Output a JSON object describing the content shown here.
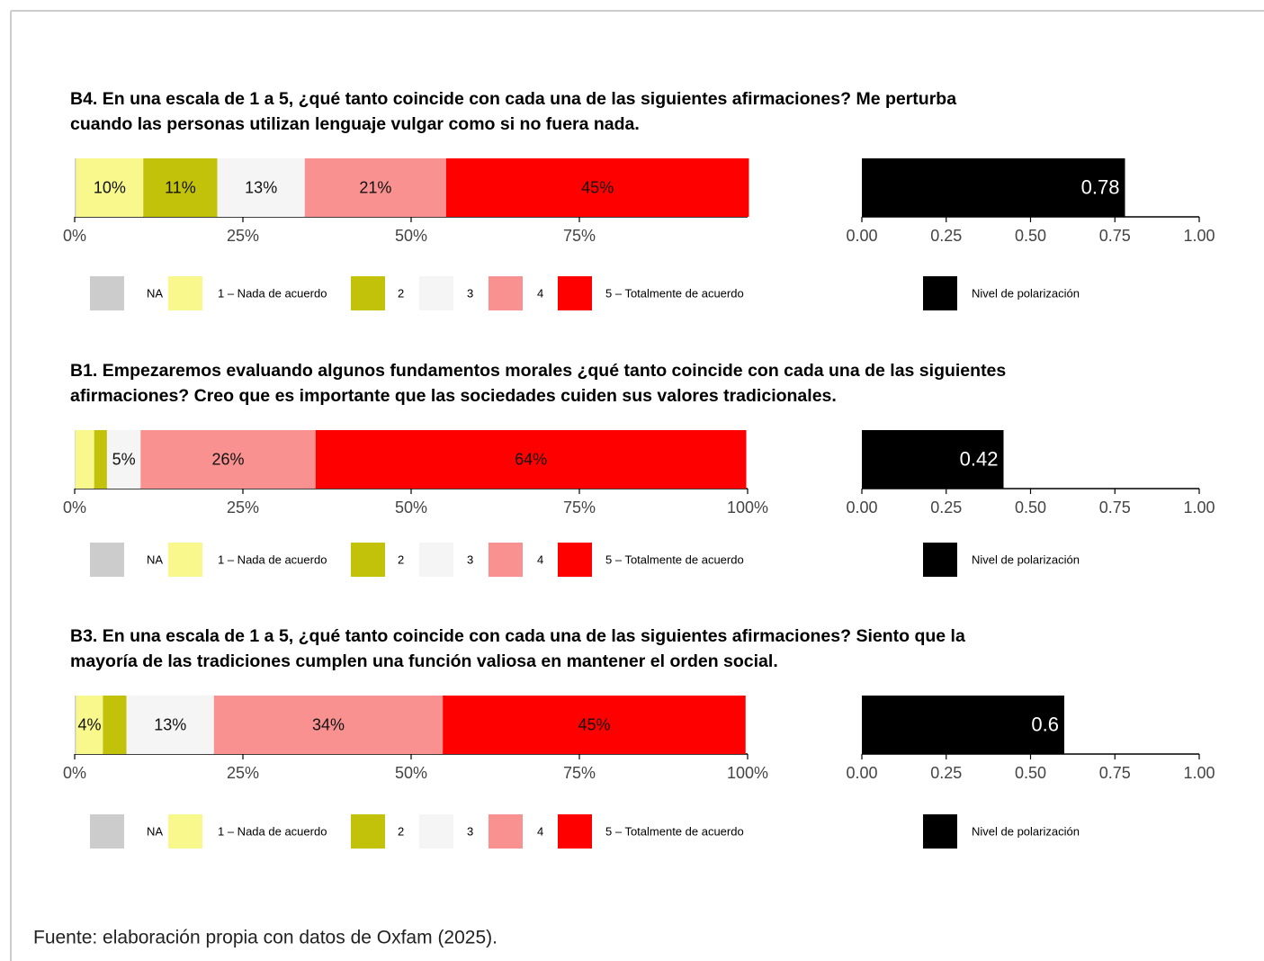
{
  "chart_data": [
    {
      "type": "bar",
      "stacked": true,
      "orientation": "horizontal",
      "title": [
        "B4. En una escala de 1 a 5, ¿qué tanto coincide con cada una de las siguientes afirmaciones? Me perturba",
        "cuando las personas utilizan lenguaje vulgar como si no fuera nada."
      ],
      "series": [
        {
          "name": "NA",
          "color": "#cccccc",
          "values": [
            0.2
          ]
        },
        {
          "name": "1 – Nada de acuerdo",
          "color": "#f8f88c",
          "values": [
            10
          ],
          "value_labels": [
            "10%"
          ]
        },
        {
          "name": "2",
          "color": "#c2c20a",
          "values": [
            11
          ],
          "value_labels": [
            "11%"
          ]
        },
        {
          "name": "3",
          "color": "#f5f5f5",
          "values": [
            13
          ],
          "value_labels": [
            "13%"
          ]
        },
        {
          "name": "4",
          "color": "#f99191",
          "values": [
            21
          ],
          "value_labels": [
            "21%"
          ]
        },
        {
          "name": "5 – Totalmente de acuerdo",
          "color": "#ff0000",
          "values": [
            45
          ],
          "value_labels": [
            "45%"
          ]
        }
      ],
      "xlim": [
        0,
        100
      ],
      "xticks": [
        {
          "value": 0,
          "label": "0%"
        },
        {
          "value": 25,
          "label": "25%"
        },
        {
          "value": 50,
          "label": "50%"
        },
        {
          "value": 75,
          "label": "75%"
        }
      ]
    },
    {
      "type": "bar",
      "orientation": "horizontal",
      "series": [
        {
          "name": "Nivel de polarización",
          "color": "#000000",
          "values": [
            0.78
          ]
        }
      ],
      "xlim": [
        0,
        1
      ],
      "xticks": [
        {
          "value": 0,
          "label": "0.00"
        },
        {
          "value": 0.25,
          "label": "0.25"
        },
        {
          "value": 0.5,
          "label": "0.50"
        },
        {
          "value": 0.75,
          "label": "0.75"
        },
        {
          "value": 1,
          "label": "1.00"
        }
      ]
    },
    {
      "type": "bar",
      "stacked": true,
      "orientation": "horizontal",
      "title": [
        "B1. Empezaremos evaluando algunos fundamentos morales ¿qué tanto coincide con cada una de las siguientes",
        "afirmaciones? Creo que es importante que las sociedades cuiden sus valores tradicionales."
      ],
      "series": [
        {
          "name": "NA",
          "color": "#cccccc",
          "values": [
            0.1
          ]
        },
        {
          "name": "1 – Nada de acuerdo",
          "color": "#f8f88c",
          "values": [
            2.8
          ]
        },
        {
          "name": "2",
          "color": "#c2c20a",
          "values": [
            1.9
          ]
        },
        {
          "name": "3",
          "color": "#f5f5f5",
          "values": [
            5
          ],
          "value_labels": [
            "5%"
          ]
        },
        {
          "name": "4",
          "color": "#f99191",
          "values": [
            26
          ],
          "value_labels": [
            "26%"
          ]
        },
        {
          "name": "5 – Totalmente de acuerdo",
          "color": "#ff0000",
          "values": [
            64
          ],
          "value_labels": [
            "64%"
          ]
        }
      ],
      "xlim": [
        0,
        100
      ],
      "xticks": [
        {
          "value": 0,
          "label": "0%"
        },
        {
          "value": 25,
          "label": "25%"
        },
        {
          "value": 50,
          "label": "50%"
        },
        {
          "value": 75,
          "label": "75%"
        },
        {
          "value": 100,
          "label": "100%"
        }
      ]
    },
    {
      "type": "bar",
      "orientation": "horizontal",
      "series": [
        {
          "name": "Nivel de polarización",
          "color": "#000000",
          "values": [
            0.42
          ]
        }
      ],
      "xlim": [
        0,
        1
      ],
      "xticks": [
        {
          "value": 0,
          "label": "0.00"
        },
        {
          "value": 0.25,
          "label": "0.25"
        },
        {
          "value": 0.5,
          "label": "0.50"
        },
        {
          "value": 0.75,
          "label": "0.75"
        },
        {
          "value": 1,
          "label": "1.00"
        }
      ]
    },
    {
      "type": "bar",
      "stacked": true,
      "orientation": "horizontal",
      "title": [
        "B3. En una escala de 1 a 5, ¿qué tanto coincide con cada una de las siguientes afirmaciones? Siento que la",
        "mayoría de las tradiciones cumplen una función valiosa en mantener el orden social."
      ],
      "series": [
        {
          "name": "NA",
          "color": "#cccccc",
          "values": [
            0.2
          ]
        },
        {
          "name": "1 – Nada de acuerdo",
          "color": "#f8f88c",
          "values": [
            4
          ],
          "value_labels": [
            "4%"
          ]
        },
        {
          "name": "2",
          "color": "#c2c20a",
          "values": [
            3.5
          ]
        },
        {
          "name": "3",
          "color": "#f5f5f5",
          "values": [
            13
          ],
          "value_labels": [
            "13%"
          ]
        },
        {
          "name": "4",
          "color": "#f99191",
          "values": [
            34
          ],
          "value_labels": [
            "34%"
          ]
        },
        {
          "name": "5 – Totalmente de acuerdo",
          "color": "#ff0000",
          "values": [
            45
          ],
          "value_labels": [
            "45%"
          ]
        }
      ],
      "xlim": [
        0,
        100
      ],
      "xticks": [
        {
          "value": 0,
          "label": "0%"
        },
        {
          "value": 25,
          "label": "25%"
        },
        {
          "value": 50,
          "label": "50%"
        },
        {
          "value": 75,
          "label": "75%"
        },
        {
          "value": 100,
          "label": "100%"
        }
      ]
    },
    {
      "type": "bar",
      "orientation": "horizontal",
      "series": [
        {
          "name": "Nivel de polarización",
          "color": "#000000",
          "values": [
            0.6
          ]
        }
      ],
      "xlim": [
        0,
        1
      ],
      "xticks": [
        {
          "value": 0,
          "label": "0.00"
        },
        {
          "value": 0.25,
          "label": "0.25"
        },
        {
          "value": 0.5,
          "label": "0.50"
        },
        {
          "value": 0.75,
          "label": "0.75"
        },
        {
          "value": 1,
          "label": "1.00"
        }
      ]
    }
  ],
  "source": "Fuente: elaboración propia con datos de Oxfam (2025)."
}
